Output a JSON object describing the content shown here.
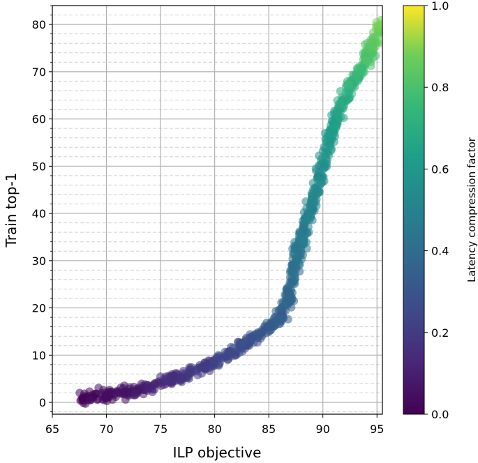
{
  "chart_data": {
    "type": "scatter",
    "title": "",
    "xlabel": "ILP objective",
    "ylabel": "Train top-1",
    "xlim": [
      65,
      95.5
    ],
    "ylim": [
      -2.5,
      84
    ],
    "xticks": [
      "65",
      "70",
      "75",
      "80",
      "85",
      "90",
      "95"
    ],
    "yticks": [
      "0",
      "10",
      "20",
      "30",
      "40",
      "50",
      "60",
      "70",
      "80"
    ],
    "grid": true,
    "minor_grid": "dashed",
    "colormap": "viridis",
    "colorbar": {
      "label": "Latency compression factor",
      "range": [
        0.0,
        1.0
      ],
      "ticks": [
        "0.0",
        "0.2",
        "0.4",
        "0.6",
        "0.8",
        "1.0"
      ]
    },
    "trend": [
      {
        "x": 67.8,
        "y": 0.8,
        "c": 0.01
      },
      {
        "x": 70.0,
        "y": 1.5,
        "c": 0.04
      },
      {
        "x": 72.5,
        "y": 2.2,
        "c": 0.08
      },
      {
        "x": 75.0,
        "y": 4.0,
        "c": 0.13
      },
      {
        "x": 77.5,
        "y": 6.0,
        "c": 0.18
      },
      {
        "x": 80.0,
        "y": 8.5,
        "c": 0.22
      },
      {
        "x": 82.5,
        "y": 12.0,
        "c": 0.27
      },
      {
        "x": 84.5,
        "y": 15.0,
        "c": 0.31
      },
      {
        "x": 86.0,
        "y": 18.0,
        "c": 0.35
      },
      {
        "x": 86.8,
        "y": 22.0,
        "c": 0.38
      },
      {
        "x": 87.5,
        "y": 30.0,
        "c": 0.43
      },
      {
        "x": 88.5,
        "y": 38.0,
        "c": 0.48
      },
      {
        "x": 89.5,
        "y": 46.0,
        "c": 0.54
      },
      {
        "x": 90.5,
        "y": 55.0,
        "c": 0.6
      },
      {
        "x": 91.5,
        "y": 62.0,
        "c": 0.66
      },
      {
        "x": 92.8,
        "y": 68.0,
        "c": 0.74
      },
      {
        "x": 94.3,
        "y": 74.0,
        "c": 0.82
      },
      {
        "x": 95.5,
        "y": 80.0,
        "c": 0.9
      }
    ],
    "point_count": 900
  }
}
